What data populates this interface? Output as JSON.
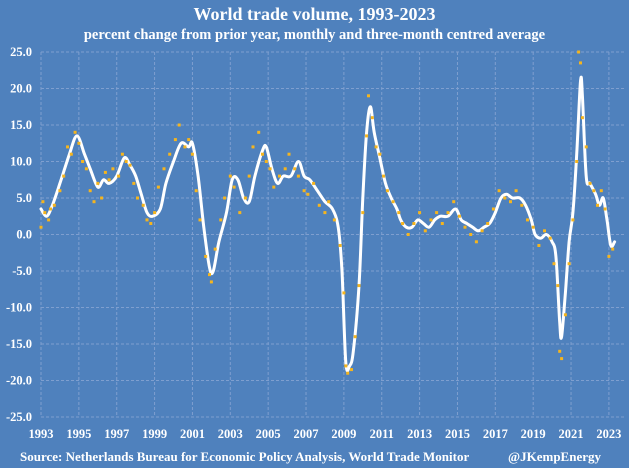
{
  "chart_data": {
    "type": "line",
    "title": "World trade volume, 1993-2023",
    "subtitle": "percent change from prior year, monthly and three-month centred average",
    "xlabel": "",
    "ylabel": "",
    "xlim": [
      1993,
      2024
    ],
    "ylim": [
      -25,
      25
    ],
    "grid": true,
    "legend": "none",
    "x_ticks": [
      "1993",
      "1995",
      "1997",
      "1999",
      "2001",
      "2003",
      "2005",
      "2007",
      "2009",
      "2011",
      "2013",
      "2015",
      "2017",
      "2019",
      "2021",
      "2023"
    ],
    "y_ticks": [
      "25.0",
      "20.0",
      "15.0",
      "10.0",
      "5.0",
      "0.0",
      "-5.0",
      "-10.0",
      "-15.0",
      "-20.0",
      "-25.0"
    ],
    "y_tick_values": [
      25,
      20,
      15,
      10,
      5,
      0,
      -5,
      -10,
      -15,
      -20,
      -25
    ],
    "series": [
      {
        "name": "three-month centred average",
        "style": "line",
        "color": "#ffffff",
        "x": [
          1993.0,
          1993.3,
          1993.6,
          1994.0,
          1994.5,
          1994.9,
          1995.3,
          1995.6,
          1996.0,
          1996.3,
          1996.6,
          1997.0,
          1997.4,
          1997.7,
          1998.0,
          1998.3,
          1998.6,
          1998.9,
          1999.3,
          1999.6,
          2000.0,
          2000.4,
          2000.8,
          2001.0,
          2001.3,
          2001.6,
          2001.9,
          2002.1,
          2002.4,
          2002.8,
          2003.1,
          2003.4,
          2003.7,
          2004.0,
          2004.3,
          2004.7,
          2004.9,
          2005.2,
          2005.5,
          2005.8,
          2006.2,
          2006.6,
          2006.9,
          2007.2,
          2007.6,
          2008.0,
          2008.4,
          2008.7,
          2008.9,
          2009.1,
          2009.3,
          2009.5,
          2009.8,
          2010.0,
          2010.2,
          2010.4,
          2010.6,
          2010.9,
          2011.2,
          2011.5,
          2011.8,
          2012.0,
          2012.3,
          2012.6,
          2012.9,
          2013.2,
          2013.5,
          2013.8,
          2014.1,
          2014.5,
          2014.9,
          2015.2,
          2015.5,
          2015.8,
          2016.1,
          2016.4,
          2016.7,
          2017.0,
          2017.3,
          2017.6,
          2017.9,
          2018.3,
          2018.6,
          2018.9,
          2019.1,
          2019.4,
          2019.7,
          2020.0,
          2020.2,
          2020.4,
          2020.5,
          2020.7,
          2020.9,
          2021.1,
          2021.3,
          2021.5,
          2021.6,
          2021.8,
          2022.0,
          2022.3,
          2022.5,
          2022.7,
          2022.9,
          2023.1,
          2023.3
        ],
        "values": [
          3.5,
          2.5,
          4,
          7,
          11,
          13.5,
          11,
          9,
          6.5,
          7.5,
          7,
          8,
          10.5,
          9.5,
          8,
          5.5,
          3,
          2.5,
          3.5,
          7,
          10,
          12.5,
          12,
          12.5,
          8,
          1,
          -4.5,
          -5,
          -1,
          3,
          7.5,
          7.5,
          5,
          4.5,
          8,
          11.5,
          12,
          9,
          7,
          8,
          8,
          10,
          8,
          7.5,
          6,
          4.5,
          3.5,
          1,
          -5,
          -17.5,
          -18,
          -16,
          -7,
          5,
          14,
          17.5,
          14,
          10.5,
          7,
          5,
          3.5,
          2,
          1,
          1,
          2,
          1.5,
          1,
          2,
          2.5,
          2.5,
          3.5,
          2,
          1.5,
          1,
          0.5,
          1,
          1.5,
          3,
          5,
          5.5,
          5,
          5,
          4,
          2,
          0,
          -0.5,
          0,
          -1,
          -3,
          -12,
          -14,
          -8,
          -1,
          3,
          11,
          21,
          19,
          8,
          7,
          5.5,
          4,
          5,
          2,
          -1.5,
          -1
        ]
      },
      {
        "name": "monthly",
        "style": "scatter",
        "color": "#f5b51e",
        "x": [
          1993.0,
          1993.1,
          1993.2,
          1993.4,
          1993.5,
          1993.7,
          1994.0,
          1994.2,
          1994.4,
          1994.6,
          1994.8,
          1995.0,
          1995.2,
          1995.4,
          1995.6,
          1995.8,
          1996.0,
          1996.2,
          1996.4,
          1996.6,
          1996.8,
          1997.1,
          1997.3,
          1997.5,
          1997.7,
          1997.9,
          1998.1,
          1998.4,
          1998.6,
          1998.8,
          1999.0,
          1999.2,
          1999.5,
          1999.8,
          2000.1,
          2000.3,
          2000.6,
          2000.8,
          2001.0,
          2001.2,
          2001.4,
          2001.7,
          2001.9,
          2002.0,
          2002.2,
          2002.5,
          2002.7,
          2003.0,
          2003.2,
          2003.5,
          2003.8,
          2004.0,
          2004.2,
          2004.5,
          2004.7,
          2004.9,
          2005.1,
          2005.3,
          2005.6,
          2005.9,
          2006.1,
          2006.4,
          2006.6,
          2006.9,
          2007.1,
          2007.4,
          2007.7,
          2008.0,
          2008.2,
          2008.5,
          2008.8,
          2009.0,
          2009.1,
          2009.2,
          2009.4,
          2009.6,
          2009.8,
          2010.0,
          2010.2,
          2010.3,
          2010.5,
          2010.7,
          2010.9,
          2011.1,
          2011.3,
          2011.6,
          2011.9,
          2012.1,
          2012.4,
          2012.7,
          2013.0,
          2013.3,
          2013.6,
          2013.9,
          2014.2,
          2014.5,
          2014.8,
          2015.1,
          2015.4,
          2015.7,
          2016.0,
          2016.3,
          2016.6,
          2016.9,
          2017.2,
          2017.5,
          2017.8,
          2018.1,
          2018.4,
          2018.7,
          2019.0,
          2019.3,
          2019.6,
          2019.9,
          2020.1,
          2020.3,
          2020.4,
          2020.5,
          2020.7,
          2020.9,
          2021.1,
          2021.3,
          2021.4,
          2021.5,
          2021.6,
          2021.8,
          2022.0,
          2022.2,
          2022.4,
          2022.6,
          2022.8,
          2023.0,
          2023.2
        ],
        "values": [
          1,
          4.5,
          3,
          2,
          3.5,
          4,
          6,
          8,
          12,
          11,
          14,
          12.5,
          10,
          9,
          6,
          4.5,
          7,
          5,
          8.5,
          7.5,
          9,
          8,
          11,
          10,
          9.5,
          7,
          5,
          4,
          2,
          1.5,
          3,
          6.5,
          9,
          11,
          13,
          15,
          12,
          13,
          11,
          6,
          2,
          -3,
          -5.5,
          -6.5,
          -2,
          2,
          5,
          8,
          6.5,
          3,
          5,
          8,
          12,
          14,
          11,
          10,
          9,
          6.5,
          8,
          9,
          11,
          9,
          8,
          6,
          5.5,
          7,
          4,
          3,
          4.5,
          2,
          -1.5,
          -8,
          -18,
          -19,
          -18.5,
          -14,
          -7,
          3,
          13.5,
          19,
          16,
          12,
          11,
          8,
          6,
          4.5,
          3,
          1.5,
          0,
          1.5,
          3,
          0.5,
          2,
          3,
          1.5,
          3,
          4.5,
          2.5,
          1,
          0,
          -1,
          0.5,
          1.5,
          3.5,
          6,
          5,
          4.5,
          6,
          4,
          2,
          1,
          -1.5,
          0.5,
          -0.5,
          -4,
          -7,
          -16,
          -17,
          -11,
          -4,
          2,
          10,
          25,
          23.5,
          16,
          12,
          7,
          6,
          4,
          6,
          3.5,
          -3,
          -2
        ]
      }
    ]
  },
  "source_text": "Source:  Netherlands Bureau for Economic Policy Analysis, World Trade Monitor",
  "credit_text": "@JKempEnergy",
  "colors": {
    "background": "#4f81bd",
    "line": "#ffffff",
    "points": "#f5b51e",
    "grid": "#7f9fcf"
  }
}
